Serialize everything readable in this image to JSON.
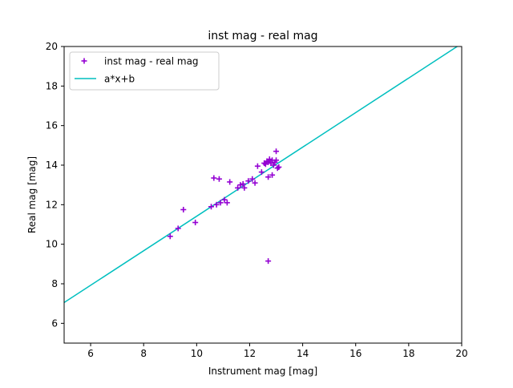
{
  "chart_data": {
    "type": "scatter",
    "title": "inst mag - real mag",
    "xlabel": "Instrument mag [mag]",
    "ylabel": "Real mag [mag]",
    "xlim": [
      5,
      20
    ],
    "ylim": [
      5,
      20
    ],
    "xticks": [
      6,
      8,
      10,
      12,
      14,
      16,
      18,
      20
    ],
    "yticks": [
      6,
      8,
      10,
      12,
      14,
      16,
      18,
      20
    ],
    "grid": false,
    "legend_position": "upper-left",
    "series": [
      {
        "name": "inst mag - real mag",
        "kind": "scatter",
        "marker": "plus",
        "color": "#9400d3",
        "points": [
          [
            9.0,
            10.4
          ],
          [
            9.3,
            10.8
          ],
          [
            9.5,
            11.75
          ],
          [
            9.95,
            11.1
          ],
          [
            10.55,
            11.9
          ],
          [
            10.75,
            12.0
          ],
          [
            10.9,
            12.1
          ],
          [
            11.05,
            12.25
          ],
          [
            11.15,
            12.1
          ],
          [
            10.65,
            13.35
          ],
          [
            10.85,
            13.3
          ],
          [
            11.25,
            13.15
          ],
          [
            11.55,
            12.85
          ],
          [
            11.65,
            13.0
          ],
          [
            11.75,
            13.05
          ],
          [
            11.8,
            12.85
          ],
          [
            11.95,
            13.2
          ],
          [
            12.1,
            13.3
          ],
          [
            12.2,
            13.1
          ],
          [
            12.3,
            13.95
          ],
          [
            12.45,
            13.65
          ],
          [
            12.55,
            14.1
          ],
          [
            12.6,
            14.05
          ],
          [
            12.65,
            14.2
          ],
          [
            12.7,
            14.15
          ],
          [
            12.7,
            13.4
          ],
          [
            12.75,
            14.3
          ],
          [
            12.8,
            14.1
          ],
          [
            12.85,
            14.25
          ],
          [
            12.85,
            13.5
          ],
          [
            12.9,
            14.0
          ],
          [
            12.95,
            14.15
          ],
          [
            13.0,
            14.7
          ],
          [
            13.0,
            14.25
          ],
          [
            13.05,
            13.85
          ],
          [
            13.1,
            13.9
          ],
          [
            12.7,
            9.15
          ]
        ]
      },
      {
        "name": "a*x+b",
        "kind": "line",
        "color": "#00bfbf",
        "x": [
          5,
          20
        ],
        "y": [
          7.05,
          20.15
        ]
      }
    ]
  }
}
